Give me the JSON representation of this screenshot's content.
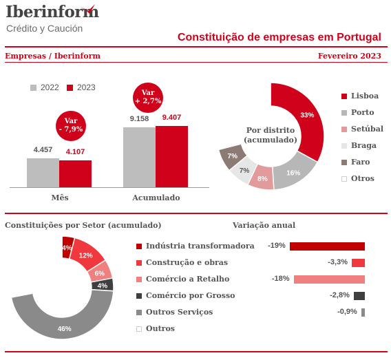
{
  "brand": {
    "name": "Iberinform",
    "tagline": "Crédito y Caución",
    "accent": "#d0021b"
  },
  "header": {
    "title": "Constituição de empresas em Portugal",
    "section_left": "Empresas / Iberinform",
    "section_right": "Fevereiro 2023"
  },
  "chart_data": [
    {
      "type": "bar",
      "categories": [
        "Mês",
        "Acumulado"
      ],
      "series": [
        {
          "name": "2022",
          "values": [
            4457,
            9158
          ],
          "labels": [
            "4.457",
            "9.158"
          ],
          "color": "#bdbdbd"
        },
        {
          "name": "2023",
          "values": [
            4107,
            9407
          ],
          "labels": [
            "4.107",
            "9.407"
          ],
          "color": "#d0021b"
        }
      ],
      "annotations": [
        {
          "category": "Mês",
          "line1": "Var",
          "line2": "- 7,9%"
        },
        {
          "category": "Acumulado",
          "line1": "Var",
          "line2": "+ 2,7%"
        }
      ]
    },
    {
      "type": "pie",
      "title": "Por distrito (acumulado)",
      "slices": [
        {
          "name": "Lisboa",
          "value": 33,
          "label": "33%",
          "color": "#d0021b"
        },
        {
          "name": "Porto",
          "value": 16,
          "label": "16%",
          "color": "#b7b7b7"
        },
        {
          "name": "Setúbal",
          "value": 8,
          "label": "8%",
          "color": "#e39a9a"
        },
        {
          "name": "Braga",
          "value": 7,
          "label": "7%",
          "color": "#e6e6e6"
        },
        {
          "name": "Faro",
          "value": 7,
          "label": "7%",
          "color": "#8c7b74"
        },
        {
          "name": "Otros",
          "value": 29,
          "label": "",
          "color": "#ffffff"
        }
      ]
    },
    {
      "type": "pie",
      "title": "Constituições por Setor (acumulado)",
      "slices": [
        {
          "name": "Indústria transformadora",
          "value": 4,
          "label": "4%",
          "color": "#c00000"
        },
        {
          "name": "Construção e obras",
          "value": 12,
          "label": "12%",
          "color": "#f0393e"
        },
        {
          "name": "Comércio a Retalho",
          "value": 6,
          "label": "6%",
          "color": "#f08080"
        },
        {
          "name": "Comércio por Grosso",
          "value": 4,
          "label": "4%",
          "color": "#3f3f3f"
        },
        {
          "name": "Outros Serviços",
          "value": 46,
          "label": "46%",
          "color": "#8a8a8a"
        },
        {
          "name": "Outros",
          "value": 28,
          "label": "",
          "color": "#ffffff"
        }
      ]
    },
    {
      "type": "bar",
      "orientation": "horizontal",
      "title": "Variação anual",
      "categories": [
        "Indústria transformadora",
        "Construção e obras",
        "Comércio a Retalho",
        "Comércio por Grosso",
        "Outros Serviços"
      ],
      "values": [
        -19,
        -3.3,
        -18,
        -2.8,
        -0.9
      ],
      "labels": [
        "-19%",
        "-3,3%",
        "-18%",
        "-2,8%",
        "-0,9%"
      ],
      "colors": [
        "#c00000",
        "#f0393e",
        "#f08080",
        "#3f3f3f",
        "#8a8a8a"
      ]
    }
  ]
}
